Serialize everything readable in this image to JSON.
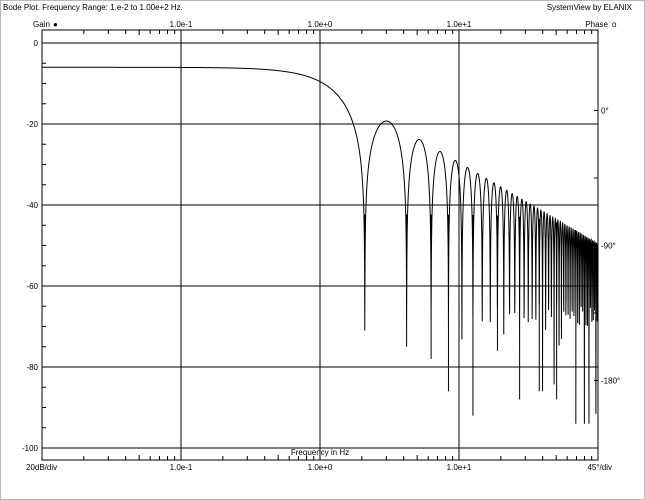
{
  "header": {
    "title": "Bode Plot.  Frequency Range: 1.e-2 to 1.00e+2 Hz.",
    "brand": "SystemView by ELANIX"
  },
  "legend": {
    "gain_label": "Gain",
    "gain_marker": "●",
    "phase_label": "Phase",
    "phase_marker": "o"
  },
  "footer": {
    "left_scale": "20dB/div",
    "right_scale": "45°/div",
    "xlabel": "Frequency in Hz"
  },
  "chart_data": {
    "type": "line",
    "title": "Bode Plot.  Frequency Range: 1.e-2 to 1.00e+2 Hz.",
    "xlabel": "Frequency in Hz",
    "ylabel": "Gain",
    "xscale": "log",
    "xlim": [
      0.01,
      100
    ],
    "ylim": [
      -100,
      0
    ],
    "grid": true,
    "x_tick_labels": [
      {
        "value": 0.1,
        "label": "1.0e-1"
      },
      {
        "value": 1,
        "label": "1.0e+0"
      },
      {
        "value": 10,
        "label": "1.0e+1"
      }
    ],
    "y_ticks": [
      0,
      -20,
      -40,
      -60,
      -80,
      -100
    ],
    "phase_tick_labels": [
      {
        "value": 0,
        "label": "0°"
      },
      {
        "value": -90,
        "label": "-90°"
      },
      {
        "value": -180,
        "label": "-180°"
      }
    ],
    "phase_ylim_at_plot_edges": [
      45,
      -225
    ],
    "series": [
      {
        "name": "Gain",
        "shape": "sinc-like response: gain = 20·log10(2·|sin(2.2·π·f/f0)/(2.2·π·f/f0)|)",
        "dc_gain_db": -6,
        "first_null_hz": 2.1,
        "null_spacing_hz": 2.1,
        "peak_points": [
          {
            "x": 0.01,
            "y": -6
          },
          {
            "x": 0.1,
            "y": -6.2
          },
          {
            "x": 0.5,
            "y": -7
          },
          {
            "x": 1.0,
            "y": -9.5
          },
          {
            "x": 3.0,
            "y": -19.5
          },
          {
            "x": 5.2,
            "y": -24
          },
          {
            "x": 7.3,
            "y": -27
          },
          {
            "x": 9.4,
            "y": -29.5
          },
          {
            "x": 11.5,
            "y": -31
          },
          {
            "x": 13.6,
            "y": -33
          },
          {
            "x": 15.7,
            "y": -34.5
          },
          {
            "x": 17.8,
            "y": -36
          },
          {
            "x": 19.9,
            "y": -37
          },
          {
            "x": 22.0,
            "y": -38
          },
          {
            "x": 26.2,
            "y": -40
          },
          {
            "x": 30.4,
            "y": -41.5
          },
          {
            "x": 36.7,
            "y": -43
          },
          {
            "x": 44.1,
            "y": -44.5
          },
          {
            "x": 58.0,
            "y": -46
          },
          {
            "x": 81.0,
            "y": -48
          }
        ],
        "null_depths": [
          {
            "x": 2.1,
            "y": -71
          },
          {
            "x": 4.2,
            "y": -75
          },
          {
            "x": 6.3,
            "y": -78
          },
          {
            "x": 8.4,
            "y": -86
          },
          {
            "x": 12.6,
            "y": -92
          },
          {
            "x": 18.9,
            "y": -76
          },
          {
            "x": 27.3,
            "y": -88
          },
          {
            "x": 37.8,
            "y": -86
          },
          {
            "x": 50.4,
            "y": -88
          },
          {
            "x": 69.3,
            "y": -94
          }
        ]
      }
    ]
  }
}
